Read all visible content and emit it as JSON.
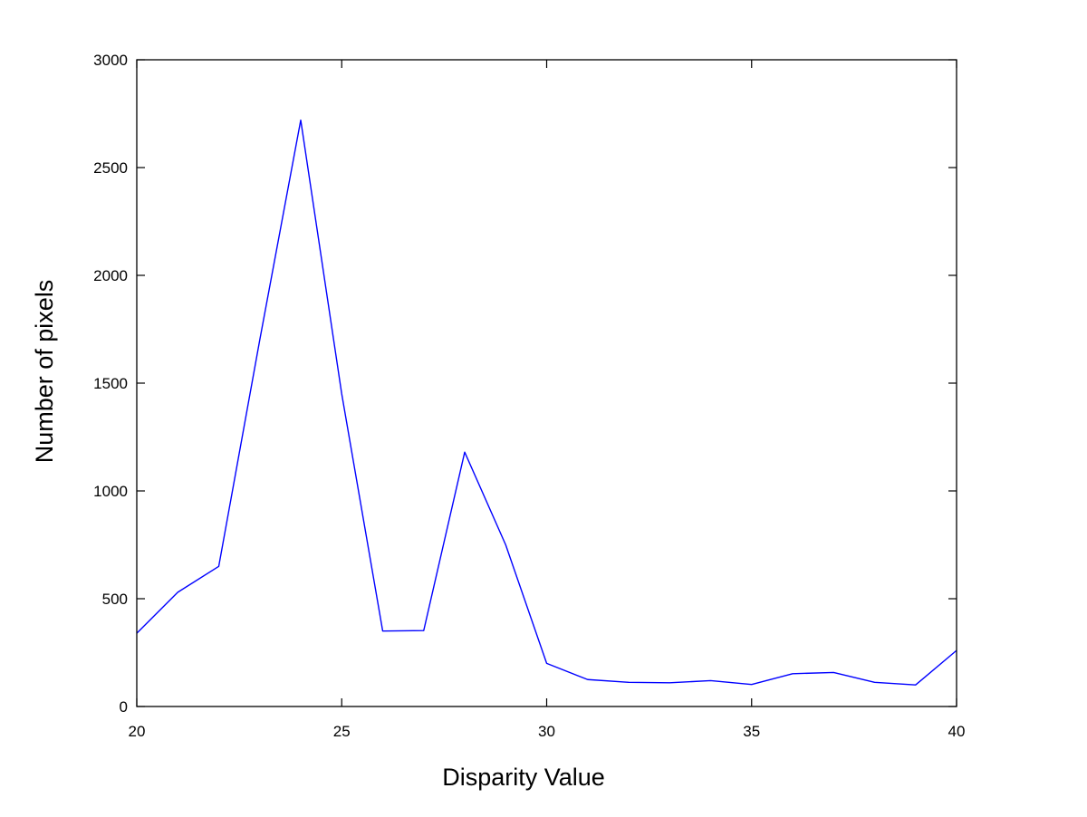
{
  "chart_data": {
    "type": "line",
    "title": "",
    "xlabel": "Disparity Value",
    "ylabel": "Number of pixels",
    "xlim": [
      20,
      40
    ],
    "ylim": [
      0,
      3000
    ],
    "x_ticks": [
      20,
      25,
      30,
      35,
      40
    ],
    "y_ticks": [
      0,
      500,
      1000,
      1500,
      2000,
      2500,
      3000
    ],
    "x_tick_labels": [
      "20",
      "25",
      "30",
      "35",
      "40"
    ],
    "y_tick_labels": [
      "0",
      "500",
      "1000",
      "1500",
      "2000",
      "2500",
      "3000"
    ],
    "grid": false,
    "legend": false,
    "series": [
      {
        "color": "#0000ff",
        "x": [
          20,
          21,
          22,
          23,
          24,
          25,
          26,
          27,
          28,
          29,
          30,
          31,
          32,
          33,
          34,
          35,
          36,
          37,
          38,
          39,
          40
        ],
        "y": [
          340,
          530,
          650,
          1700,
          2720,
          1450,
          350,
          352,
          1180,
          750,
          200,
          125,
          112,
          110,
          120,
          102,
          152,
          158,
          112,
          100,
          260
        ]
      }
    ]
  }
}
